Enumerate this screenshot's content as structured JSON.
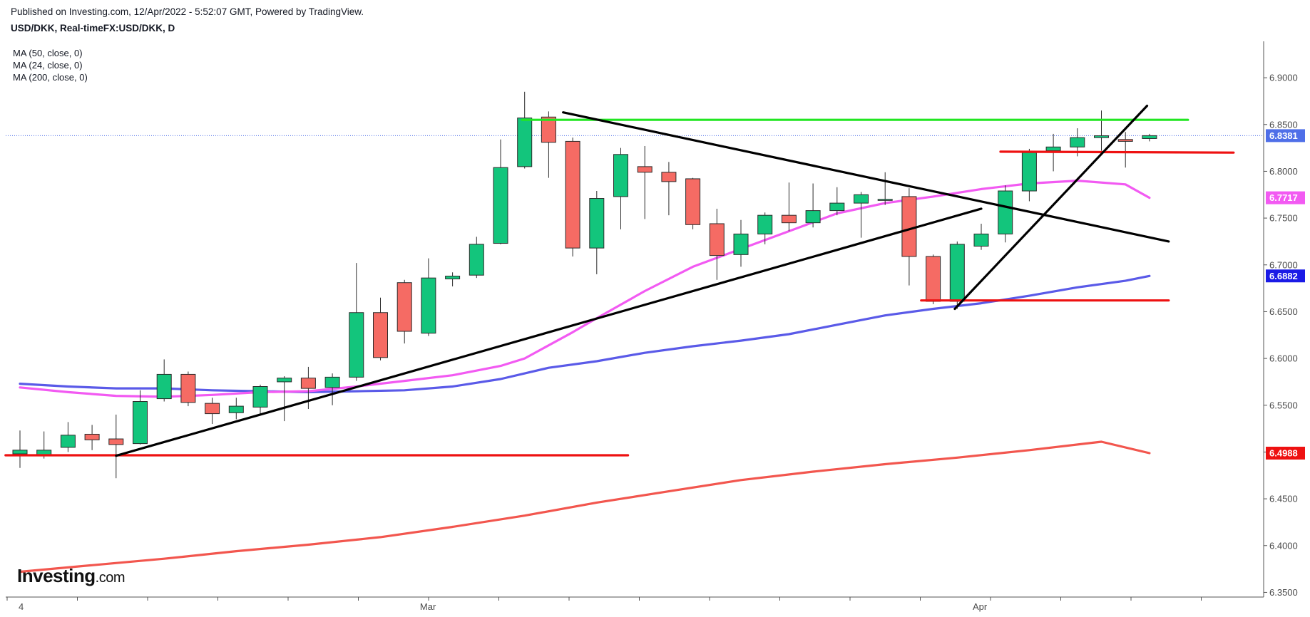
{
  "header": {
    "published": "Published on Investing.com, 12/Apr/2022 - 5:52:07 GMT, Powered by TradingView.",
    "symbol": "USD/DKK, Real-timeFX:USD/DKK, D"
  },
  "legend": [
    "MA (50, close, 0)",
    "MA (24, close, 0)",
    "MA (200, close, 0)"
  ],
  "logo": {
    "main": "Investing",
    "suffix": ".com"
  },
  "colors": {
    "up": "#13c57c",
    "down": "#f56b64",
    "wick": "#2b2b2b",
    "ma50": "#5a5ae8",
    "ma24": "#f25af2",
    "ma200": "#f2564e",
    "support": "#ee1111",
    "resistance": "#22e622",
    "trend": "#000000",
    "last_price": "#4f6fe8"
  },
  "chart_data": {
    "type": "candlestick",
    "y_range": [
      6.345,
      6.945
    ],
    "y_ticks": [
      "6.9000",
      "6.8500",
      "6.8000",
      "6.7500",
      "6.7000",
      "6.6500",
      "6.6000",
      "6.5500",
      "6.5000",
      "6.4500",
      "6.4000",
      "6.3500"
    ],
    "x_labels": [
      {
        "label": "4",
        "index": 0
      },
      {
        "label": "Mar",
        "index": 17
      },
      {
        "label": "Apr",
        "index": 40
      }
    ],
    "candles": [
      {
        "o": 6.498,
        "h": 6.523,
        "l": 6.483,
        "c": 6.502
      },
      {
        "o": 6.496,
        "h": 6.522,
        "l": 6.493,
        "c": 6.502
      },
      {
        "o": 6.505,
        "h": 6.532,
        "l": 6.5,
        "c": 6.518
      },
      {
        "o": 6.519,
        "h": 6.529,
        "l": 6.502,
        "c": 6.513
      },
      {
        "o": 6.514,
        "h": 6.54,
        "l": 6.472,
        "c": 6.508
      },
      {
        "o": 6.509,
        "h": 6.566,
        "l": 6.508,
        "c": 6.554
      },
      {
        "o": 6.557,
        "h": 6.599,
        "l": 6.554,
        "c": 6.583
      },
      {
        "o": 6.583,
        "h": 6.586,
        "l": 6.549,
        "c": 6.553
      },
      {
        "o": 6.552,
        "h": 6.558,
        "l": 6.53,
        "c": 6.541
      },
      {
        "o": 6.542,
        "h": 6.558,
        "l": 6.535,
        "c": 6.549
      },
      {
        "o": 6.548,
        "h": 6.572,
        "l": 6.541,
        "c": 6.57
      },
      {
        "o": 6.575,
        "h": 6.581,
        "l": 6.533,
        "c": 6.579
      },
      {
        "o": 6.579,
        "h": 6.591,
        "l": 6.546,
        "c": 6.568
      },
      {
        "o": 6.569,
        "h": 6.584,
        "l": 6.55,
        "c": 6.58
      },
      {
        "o": 6.58,
        "h": 6.702,
        "l": 6.576,
        "c": 6.649
      },
      {
        "o": 6.649,
        "h": 6.665,
        "l": 6.598,
        "c": 6.601
      },
      {
        "o": 6.681,
        "h": 6.684,
        "l": 6.616,
        "c": 6.629
      },
      {
        "o": 6.627,
        "h": 6.707,
        "l": 6.624,
        "c": 6.686
      },
      {
        "o": 6.685,
        "h": 6.692,
        "l": 6.677,
        "c": 6.688
      },
      {
        "o": 6.689,
        "h": 6.73,
        "l": 6.686,
        "c": 6.722
      },
      {
        "o": 6.723,
        "h": 6.834,
        "l": 6.722,
        "c": 6.804
      },
      {
        "o": 6.805,
        "h": 6.885,
        "l": 6.803,
        "c": 6.857
      },
      {
        "o": 6.858,
        "h": 6.864,
        "l": 6.793,
        "c": 6.831
      },
      {
        "o": 6.832,
        "h": 6.836,
        "l": 6.709,
        "c": 6.718
      },
      {
        "o": 6.718,
        "h": 6.779,
        "l": 6.69,
        "c": 6.771
      },
      {
        "o": 6.773,
        "h": 6.825,
        "l": 6.738,
        "c": 6.818
      },
      {
        "o": 6.805,
        "h": 6.827,
        "l": 6.749,
        "c": 6.799
      },
      {
        "o": 6.799,
        "h": 6.81,
        "l": 6.753,
        "c": 6.789
      },
      {
        "o": 6.792,
        "h": 6.793,
        "l": 6.738,
        "c": 6.743
      },
      {
        "o": 6.744,
        "h": 6.76,
        "l": 6.684,
        "c": 6.71
      },
      {
        "o": 6.711,
        "h": 6.748,
        "l": 6.698,
        "c": 6.733
      },
      {
        "o": 6.733,
        "h": 6.756,
        "l": 6.722,
        "c": 6.753
      },
      {
        "o": 6.753,
        "h": 6.788,
        "l": 6.736,
        "c": 6.745
      },
      {
        "o": 6.745,
        "h": 6.787,
        "l": 6.74,
        "c": 6.758
      },
      {
        "o": 6.758,
        "h": 6.783,
        "l": 6.753,
        "c": 6.766
      },
      {
        "o": 6.766,
        "h": 6.778,
        "l": 6.729,
        "c": 6.775
      },
      {
        "o": 6.77,
        "h": 6.799,
        "l": 6.764,
        "c": 6.77
      },
      {
        "o": 6.773,
        "h": 6.782,
        "l": 6.678,
        "c": 6.709
      },
      {
        "o": 6.709,
        "h": 6.711,
        "l": 6.658,
        "c": 6.661
      },
      {
        "o": 6.661,
        "h": 6.725,
        "l": 6.653,
        "c": 6.722
      },
      {
        "o": 6.72,
        "h": 6.744,
        "l": 6.716,
        "c": 6.733
      },
      {
        "o": 6.733,
        "h": 6.785,
        "l": 6.724,
        "c": 6.779
      },
      {
        "o": 6.779,
        "h": 6.824,
        "l": 6.768,
        "c": 6.82
      },
      {
        "o": 6.822,
        "h": 6.84,
        "l": 6.8,
        "c": 6.826
      },
      {
        "o": 6.826,
        "h": 6.846,
        "l": 6.816,
        "c": 6.836
      },
      {
        "o": 6.836,
        "h": 6.865,
        "l": 6.822,
        "c": 6.838
      },
      {
        "o": 6.834,
        "h": 6.842,
        "l": 6.804,
        "c": 6.832
      },
      {
        "o": 6.835,
        "h": 6.84,
        "l": 6.832,
        "c": 6.8381
      }
    ],
    "ma50": [
      [
        0,
        6.573
      ],
      [
        2,
        6.57
      ],
      [
        4,
        6.568
      ],
      [
        6,
        6.568
      ],
      [
        8,
        6.566
      ],
      [
        10,
        6.565
      ],
      [
        12,
        6.564
      ],
      [
        14,
        6.565
      ],
      [
        16,
        6.566
      ],
      [
        18,
        6.57
      ],
      [
        20,
        6.578
      ],
      [
        22,
        6.59
      ],
      [
        24,
        6.597
      ],
      [
        26,
        6.606
      ],
      [
        28,
        6.613
      ],
      [
        30,
        6.619
      ],
      [
        32,
        6.626
      ],
      [
        34,
        6.636
      ],
      [
        36,
        6.646
      ],
      [
        38,
        6.653
      ],
      [
        40,
        6.659
      ],
      [
        42,
        6.667
      ],
      [
        44,
        6.676
      ],
      [
        46,
        6.683
      ],
      [
        47,
        6.6882
      ]
    ],
    "ma24": [
      [
        0,
        6.569
      ],
      [
        2,
        6.564
      ],
      [
        4,
        6.56
      ],
      [
        6,
        6.559
      ],
      [
        8,
        6.561
      ],
      [
        10,
        6.564
      ],
      [
        12,
        6.565
      ],
      [
        14,
        6.57
      ],
      [
        16,
        6.576
      ],
      [
        18,
        6.582
      ],
      [
        20,
        6.592
      ],
      [
        21,
        6.6
      ],
      [
        22,
        6.614
      ],
      [
        23,
        6.628
      ],
      [
        24,
        6.643
      ],
      [
        26,
        6.672
      ],
      [
        28,
        6.698
      ],
      [
        30,
        6.717
      ],
      [
        32,
        6.736
      ],
      [
        34,
        6.755
      ],
      [
        36,
        6.766
      ],
      [
        38,
        6.773
      ],
      [
        40,
        6.781
      ],
      [
        42,
        6.787
      ],
      [
        44,
        6.79
      ],
      [
        46,
        6.786
      ],
      [
        47,
        6.7717
      ]
    ],
    "ma200": [
      [
        0,
        6.372
      ],
      [
        3,
        6.379
      ],
      [
        6,
        6.386
      ],
      [
        9,
        6.394
      ],
      [
        12,
        6.401
      ],
      [
        15,
        6.409
      ],
      [
        18,
        6.42
      ],
      [
        21,
        6.432
      ],
      [
        24,
        6.446
      ],
      [
        27,
        6.458
      ],
      [
        30,
        6.47
      ],
      [
        33,
        6.479
      ],
      [
        36,
        6.487
      ],
      [
        39,
        6.494
      ],
      [
        42,
        6.502
      ],
      [
        45,
        6.511
      ],
      [
        47,
        6.4988
      ]
    ],
    "annotations": [
      {
        "kind": "support",
        "from": [
          -0.6,
          6.4965
        ],
        "to": [
          25.3,
          6.4965
        ]
      },
      {
        "kind": "support",
        "from": [
          37.5,
          6.662
        ],
        "to": [
          47.8,
          6.662
        ]
      },
      {
        "kind": "support",
        "from": [
          40.8,
          6.821
        ],
        "to": [
          50.5,
          6.82
        ]
      },
      {
        "kind": "resistance",
        "from": [
          20.9,
          6.855
        ],
        "to": [
          48.6,
          6.855
        ]
      },
      {
        "kind": "trend",
        "from": [
          4.0,
          6.496
        ],
        "to": [
          40.0,
          6.76
        ]
      },
      {
        "kind": "trend",
        "from": [
          22.6,
          6.863
        ],
        "to": [
          47.8,
          6.725
        ]
      },
      {
        "kind": "trend",
        "from": [
          38.9,
          6.653
        ],
        "to": [
          46.9,
          6.87
        ]
      }
    ],
    "price_tags": [
      {
        "label": "6.8381",
        "value": 6.8381,
        "bg": "#4f6fe8",
        "fg": "#ffffff"
      },
      {
        "label": "6.7717",
        "value": 6.7717,
        "bg": "#f25af2",
        "fg": "#ffffff"
      },
      {
        "label": "6.6882",
        "value": 6.6882,
        "bg": "#1a1ae6",
        "fg": "#ffffff"
      },
      {
        "label": "6.4988",
        "value": 6.4988,
        "bg": "#ee1111",
        "fg": "#ffffff"
      }
    ],
    "last_price_line": 6.8381
  }
}
